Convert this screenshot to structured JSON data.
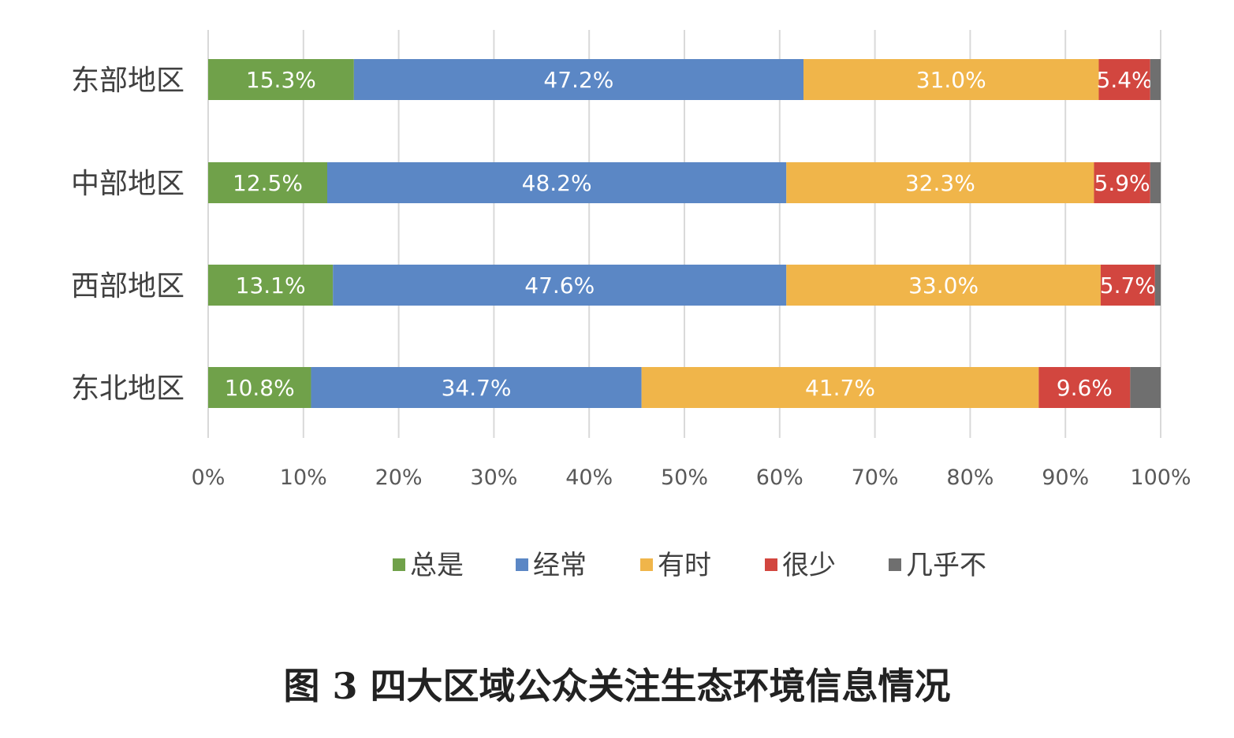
{
  "caption": "图 3 四大区域公众关注生态环境信息情况",
  "chart_data": {
    "type": "bar",
    "orientation": "horizontal",
    "stacked": "percent",
    "categories": [
      "东部地区",
      "中部地区",
      "西部地区",
      "东北地区"
    ],
    "series": [
      {
        "name": "总是",
        "color": "#70a14a",
        "values": [
          15.3,
          12.5,
          13.1,
          10.8
        ],
        "labels": [
          "15.3%",
          "12.5%",
          "13.1%",
          "10.8%"
        ]
      },
      {
        "name": "经常",
        "color": "#5b87c5",
        "values": [
          47.2,
          48.2,
          47.6,
          34.7
        ],
        "labels": [
          "47.2%",
          "48.2%",
          "47.6%",
          "34.7%"
        ]
      },
      {
        "name": "有时",
        "color": "#f0b54a",
        "values": [
          31.0,
          32.3,
          33.0,
          41.7
        ],
        "labels": [
          "31.0%",
          "32.3%",
          "33.0%",
          "41.7%"
        ]
      },
      {
        "name": "很少",
        "color": "#d2463f",
        "values": [
          5.4,
          5.9,
          5.7,
          9.6
        ],
        "labels": [
          "5.4%",
          "5.9%",
          "5.7%",
          "9.6%"
        ]
      },
      {
        "name": "几乎不",
        "color": "#6f6f6f",
        "values": [
          1.1,
          1.1,
          0.6,
          3.2
        ],
        "labels": [
          "",
          "",
          "",
          ""
        ]
      }
    ],
    "x_ticks": [
      "0%",
      "10%",
      "20%",
      "30%",
      "40%",
      "50%",
      "60%",
      "70%",
      "80%",
      "90%",
      "100%"
    ],
    "xlim": [
      0,
      100
    ],
    "grid": "vertical",
    "legend": "bottom"
  }
}
